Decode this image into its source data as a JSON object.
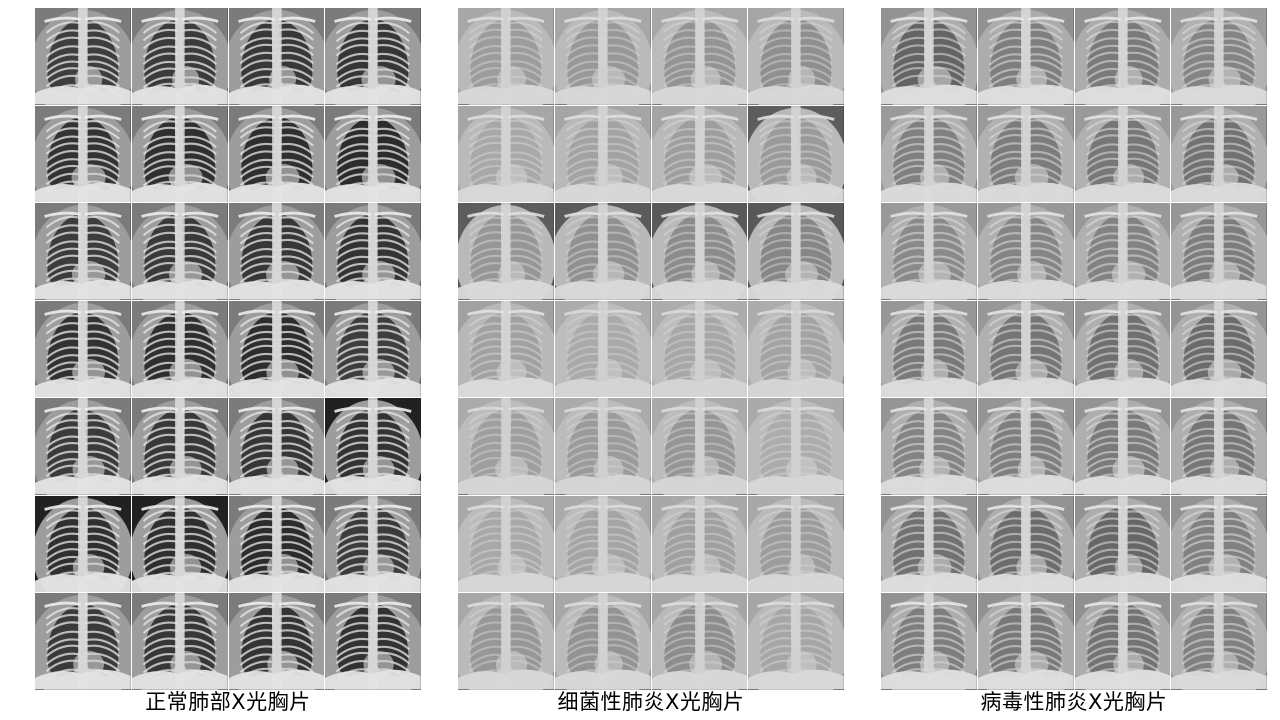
{
  "panels": [
    {
      "id": "normal",
      "caption": "正常肺部X光胸片",
      "rows": 7,
      "cols": 4,
      "tone": "normal"
    },
    {
      "id": "bacterial",
      "caption": "细菌性肺炎X光胸片",
      "rows": 7,
      "cols": 4,
      "tone": "bacterial"
    },
    {
      "id": "viral",
      "caption": "病毒性肺炎X光胸片",
      "rows": 7,
      "cols": 4,
      "tone": "viral"
    }
  ]
}
